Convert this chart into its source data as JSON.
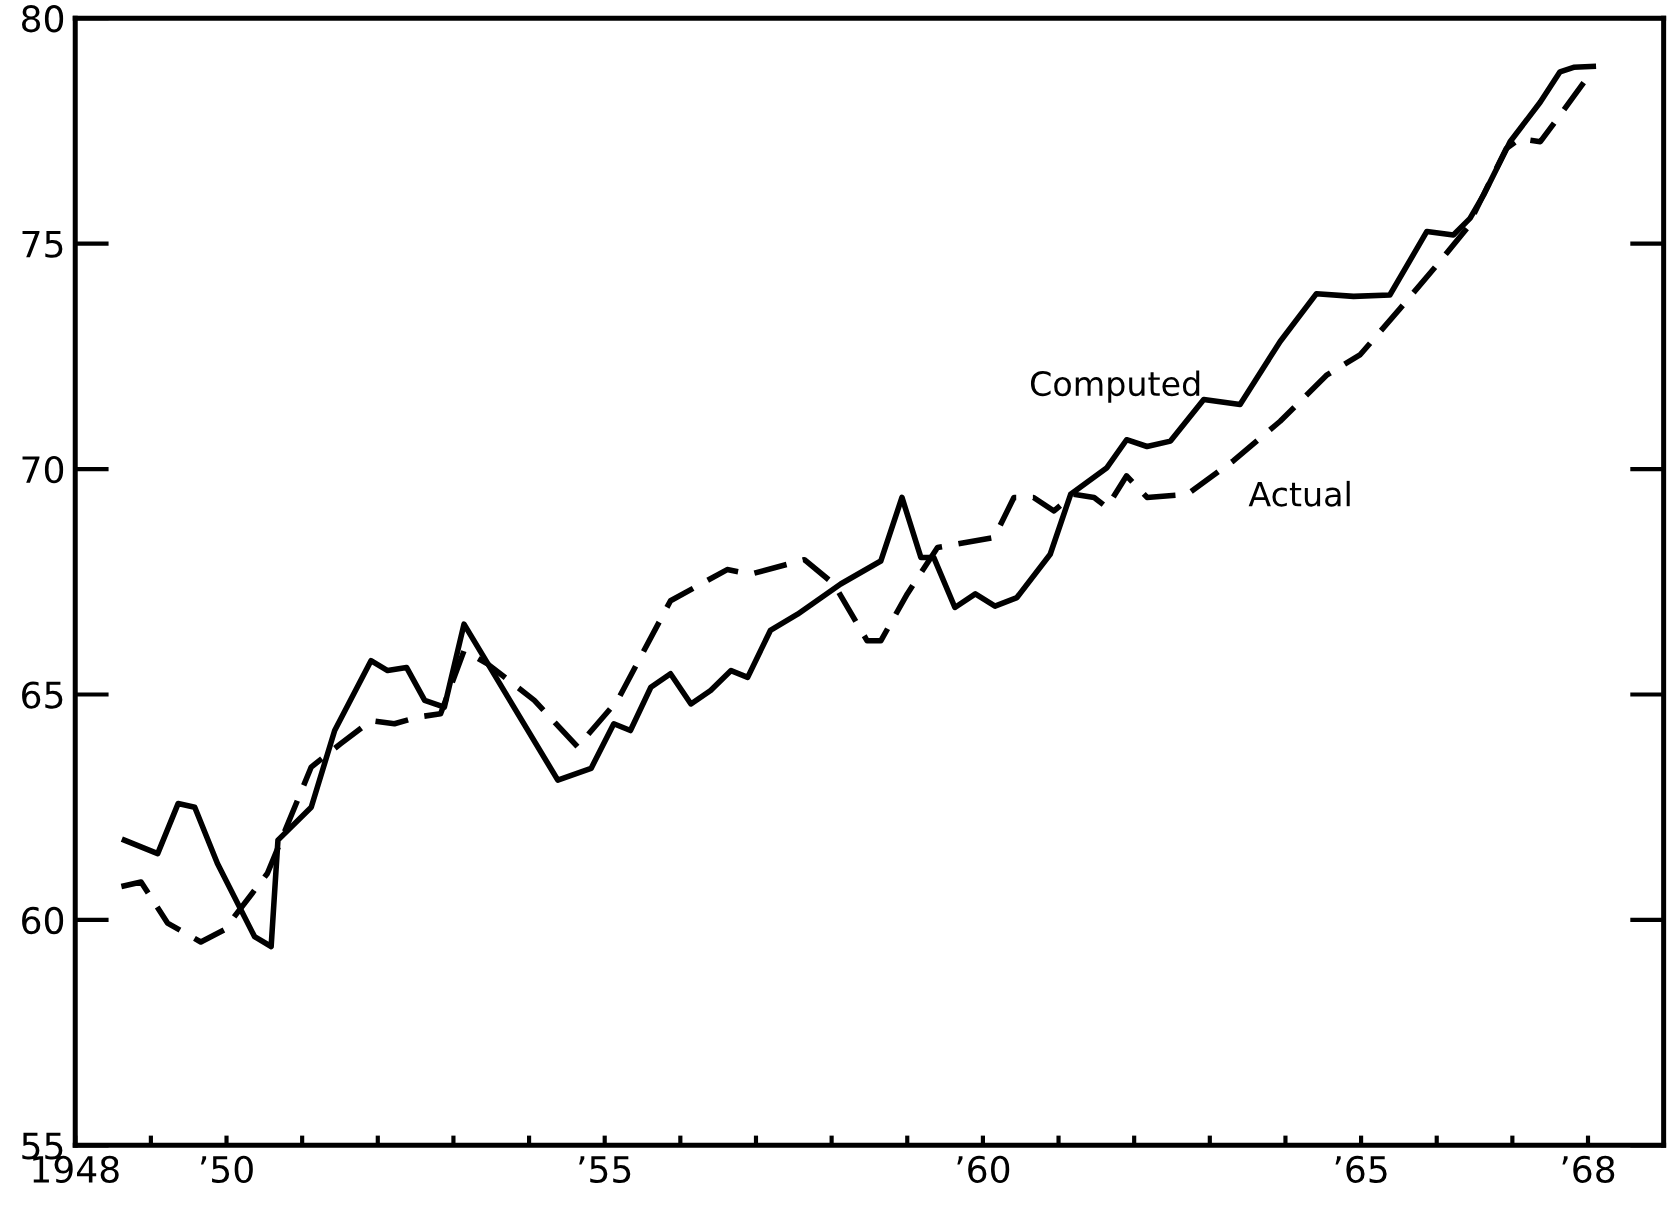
{
  "chart_data": {
    "type": "line",
    "xlim": [
      1948,
      1969
    ],
    "ylim": [
      55,
      80
    ],
    "yticks": [
      55,
      60,
      65,
      70,
      75,
      80
    ],
    "xticks": [
      {
        "value": 1948,
        "label": "1948"
      },
      {
        "value": 1949,
        "label": null
      },
      {
        "value": 1950,
        "label": "’50"
      },
      {
        "value": 1951,
        "label": null
      },
      {
        "value": 1952,
        "label": null
      },
      {
        "value": 1953,
        "label": null
      },
      {
        "value": 1954,
        "label": null
      },
      {
        "value": 1955,
        "label": "’55"
      },
      {
        "value": 1956,
        "label": null
      },
      {
        "value": 1957,
        "label": null
      },
      {
        "value": 1958,
        "label": null
      },
      {
        "value": 1959,
        "label": null
      },
      {
        "value": 1960,
        "label": "’60"
      },
      {
        "value": 1961,
        "label": null
      },
      {
        "value": 1962,
        "label": null
      },
      {
        "value": 1963,
        "label": null
      },
      {
        "value": 1964,
        "label": null
      },
      {
        "value": 1965,
        "label": "’65"
      },
      {
        "value": 1966,
        "label": null
      },
      {
        "value": 1967,
        "label": null
      },
      {
        "value": 1968,
        "label": "’68"
      }
    ],
    "grid": false,
    "legend": false,
    "series": [
      {
        "name": "Computed",
        "color": "#000000",
        "line_style": "solid",
        "x": [
          1948.65,
          1949.09,
          1949.36,
          1949.58,
          1949.88,
          1950.37,
          1950.59,
          1950.68,
          1951.12,
          1951.43,
          1951.91,
          1952.13,
          1952.38,
          1952.62,
          1952.88,
          1953.14,
          1954.38,
          1954.82,
          1955.12,
          1955.34,
          1955.61,
          1955.87,
          1956.14,
          1956.4,
          1956.67,
          1956.89,
          1957.19,
          1957.55,
          1958.12,
          1958.65,
          1958.93,
          1959.18,
          1959.35,
          1959.63,
          1959.9,
          1960.16,
          1960.45,
          1960.89,
          1961.16,
          1961.64,
          1961.9,
          1962.17,
          1962.48,
          1962.92,
          1963.4,
          1963.93,
          1964.41,
          1964.9,
          1965.38,
          1965.87,
          1966.22,
          1966.44,
          1966.62,
          1966.97,
          1967.37,
          1967.63,
          1967.81,
          1968.07
        ],
        "values": [
          61.77,
          61.47,
          62.58,
          62.5,
          61.25,
          59.63,
          59.41,
          61.77,
          62.5,
          64.2,
          65.75,
          65.53,
          65.6,
          64.87,
          64.72,
          66.56,
          63.1,
          63.36,
          64.35,
          64.2,
          65.16,
          65.46,
          64.79,
          65.09,
          65.53,
          65.38,
          66.42,
          66.78,
          67.45,
          67.96,
          69.37,
          68.04,
          68.04,
          66.93,
          67.23,
          66.96,
          67.15,
          68.11,
          69.44,
          70.03,
          70.65,
          70.5,
          70.62,
          71.54,
          71.43,
          72.83,
          73.89,
          73.83,
          73.86,
          75.27,
          75.19,
          75.56,
          76.08,
          77.26,
          78.14,
          78.81,
          78.91,
          78.93
        ]
      },
      {
        "name": "Actual",
        "color": "#000000",
        "line_style": "dashed",
        "x": [
          1948.61,
          1948.87,
          1949.22,
          1949.66,
          1949.97,
          1950.54,
          1951.12,
          1951.51,
          1951.91,
          1952.22,
          1952.53,
          1952.83,
          1953.14,
          1953.45,
          1954.07,
          1954.64,
          1955.17,
          1955.87,
          1956.62,
          1956.93,
          1957.64,
          1958.03,
          1958.47,
          1958.65,
          1959.0,
          1959.4,
          1960.15,
          1960.41,
          1960.67,
          1960.94,
          1961.2,
          1961.47,
          1961.64,
          1961.9,
          1962.17,
          1962.7,
          1963.31,
          1963.93,
          1964.55,
          1964.99,
          1965.52,
          1966.04,
          1966.4,
          1966.66,
          1966.92,
          1967.1,
          1967.37,
          1967.63,
          1968.07
        ],
        "values": [
          60.74,
          60.84,
          59.93,
          59.51,
          59.78,
          61.03,
          63.39,
          63.91,
          64.42,
          64.35,
          64.5,
          64.57,
          65.97,
          65.68,
          64.87,
          63.84,
          64.87,
          67.08,
          67.77,
          67.67,
          67.99,
          67.45,
          66.19,
          66.19,
          67.23,
          68.26,
          68.48,
          69.37,
          69.37,
          69.07,
          69.44,
          69.37,
          69.15,
          69.85,
          69.37,
          69.44,
          70.18,
          71.06,
          72.09,
          72.54,
          73.57,
          74.6,
          75.34,
          76.23,
          77.11,
          77.33,
          77.26,
          77.85,
          78.86
        ]
      }
    ]
  }
}
